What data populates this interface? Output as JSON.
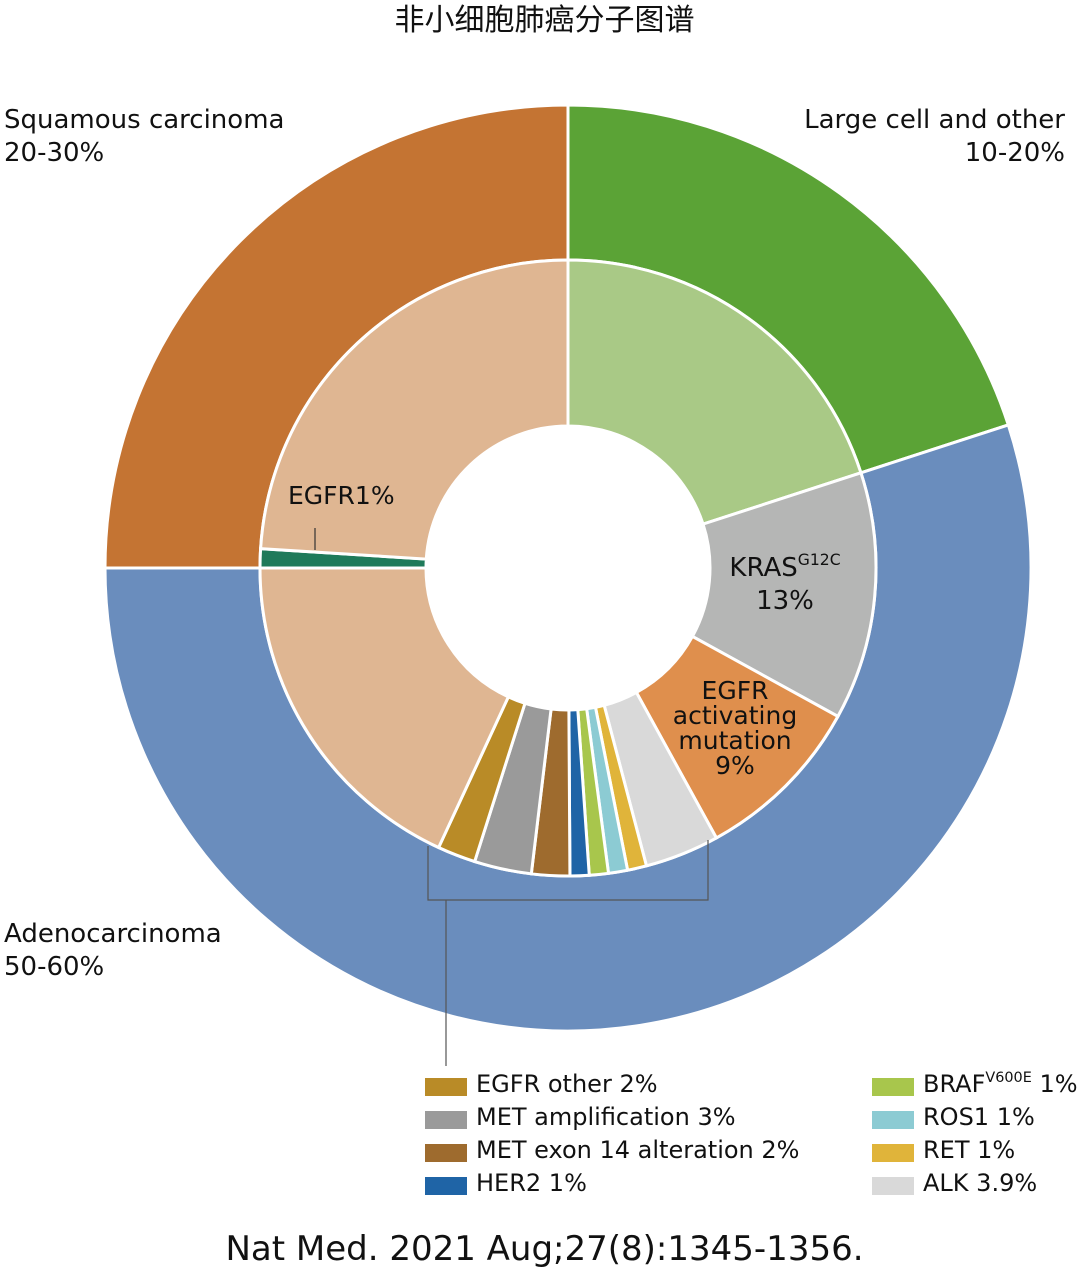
{
  "chart_data": {
    "type": "donut",
    "title": "非小细胞肺癌分子图谱",
    "source": "Nat Med. 2021 Aug;27(8):1345-1356.",
    "outer": {
      "categories": [
        "Large cell and other",
        "Adenocarcinoma",
        "Squamous carcinoma"
      ],
      "values": [
        20,
        55,
        25
      ],
      "value_labels": [
        "10-20%",
        "50-60%",
        "20-30%"
      ],
      "colors": [
        "#5ba336",
        "#6a8dbd",
        "#c47433"
      ]
    },
    "inner": {
      "categories": [
        null,
        "KRAS",
        "EGFR activating mutation",
        "ALK",
        "RET",
        "ROS1",
        "BRAF",
        "HER2",
        "MET exon 14 alteration",
        "MET amplification",
        "EGFR other",
        null,
        "EGFR",
        null
      ],
      "superscripts": [
        null,
        "G12C",
        null,
        null,
        null,
        null,
        "V600E",
        null,
        null,
        null,
        null,
        null,
        null,
        null
      ],
      "values": [
        20,
        13,
        9,
        3.9,
        1,
        1,
        1,
        1,
        2,
        3,
        2,
        18.1,
        1,
        24
      ],
      "value_labels": [
        null,
        "13%",
        "9%",
        "3.9%",
        "1%",
        "1%",
        "1%",
        "1%",
        "2%",
        "3%",
        "2%",
        null,
        "1%",
        null
      ],
      "colors": [
        "#a9c986",
        "#b5b6b5",
        "#df8f4d",
        "#d9d9d9",
        "#e0b43a",
        "#8ccbd3",
        "#a8c64c",
        "#1f64a6",
        "#9e6b2e",
        "#9a9a9a",
        "#b98b27",
        "#dfb692",
        "#1f7a5a",
        "#dfb692"
      ]
    }
  }
}
